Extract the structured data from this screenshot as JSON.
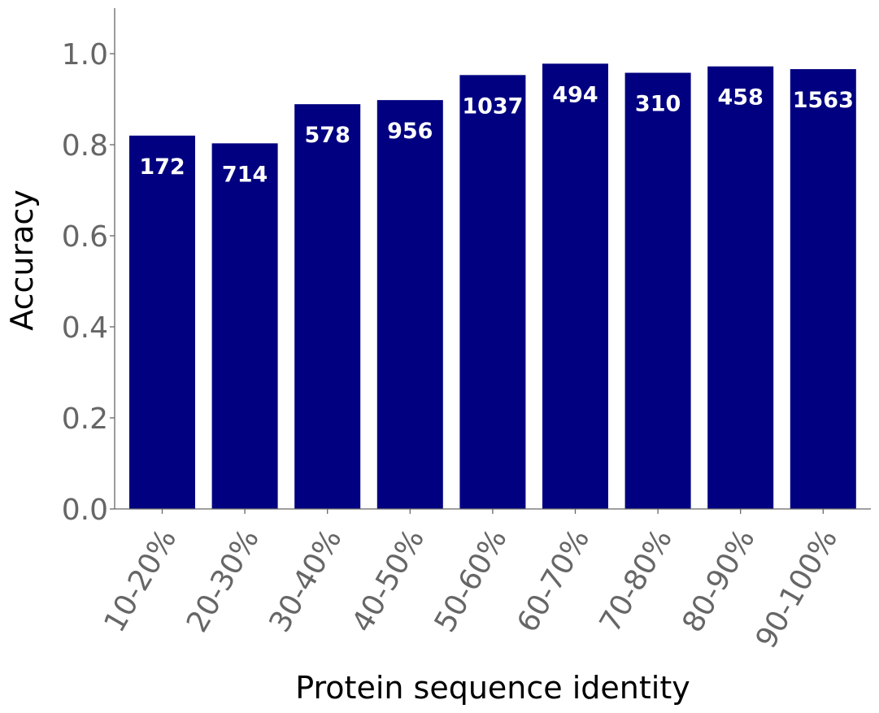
{
  "chart_data": {
    "type": "bar",
    "xlabel": "Protein sequence identity",
    "ylabel": "Accuracy",
    "ylim": [
      0,
      1.1
    ],
    "yticks": [
      "0.0",
      "0.2",
      "0.4",
      "0.6",
      "0.8",
      "1.0"
    ],
    "categories": [
      "10-20%",
      "20-30%",
      "30-40%",
      "40-50%",
      "50-60%",
      "60-70%",
      "70-80%",
      "80-90%",
      "90-100%"
    ],
    "values": [
      0.82,
      0.803,
      0.889,
      0.898,
      0.953,
      0.978,
      0.958,
      0.972,
      0.966
    ],
    "bar_labels": [
      "172",
      "714",
      "578",
      "956",
      "1037",
      "494",
      "310",
      "458",
      "1563"
    ],
    "bar_color": "#000080",
    "grid": false,
    "legend": "none"
  }
}
